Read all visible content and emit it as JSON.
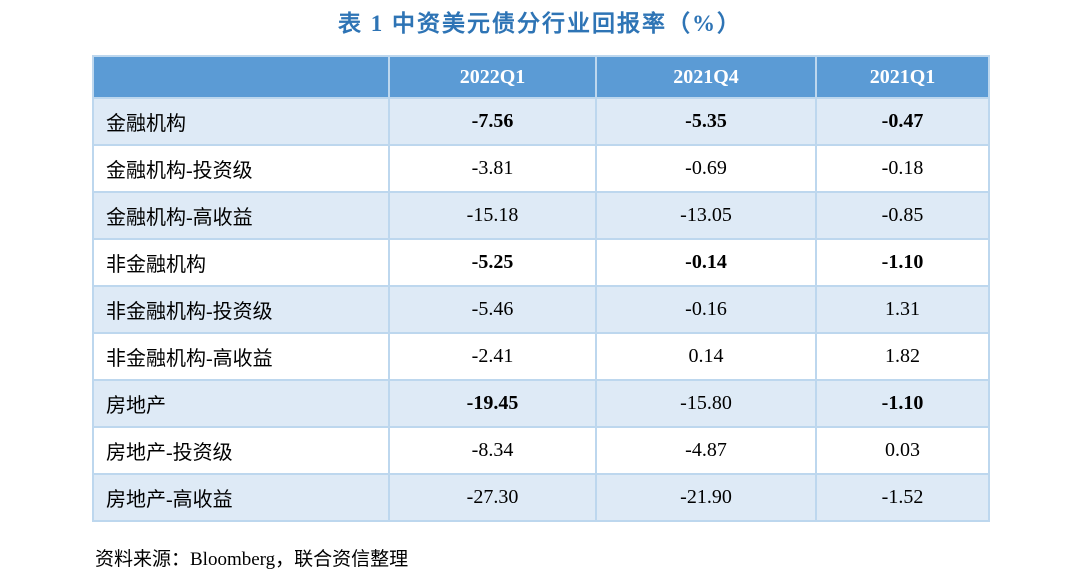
{
  "title": "表 1 中资美元债分行业回报率（%）",
  "colors": {
    "title_blue": "#2E74B5",
    "header_bg": "#5B9BD5",
    "header_text": "#FFFFFF",
    "shaded_row_bg": "#DEEAF6",
    "plain_row_bg": "#FFFFFF",
    "border": "#BDD7EE",
    "body_text": "#000000"
  },
  "table": {
    "columns": [
      "",
      "2022Q1",
      "2021Q4",
      "2021Q1"
    ],
    "rows": [
      {
        "label": "金融机构",
        "values": [
          "-7.56",
          "-5.35",
          "-0.47"
        ],
        "bold": [
          true,
          true,
          true
        ],
        "shaded": true
      },
      {
        "label": "金融机构-投资级",
        "values": [
          "-3.81",
          "-0.69",
          "-0.18"
        ],
        "bold": [
          false,
          false,
          false
        ],
        "shaded": false
      },
      {
        "label": "金融机构-高收益",
        "values": [
          "-15.18",
          "-13.05",
          "-0.85"
        ],
        "bold": [
          false,
          false,
          false
        ],
        "shaded": true
      },
      {
        "label": "非金融机构",
        "values": [
          "-5.25",
          "-0.14",
          "-1.10"
        ],
        "bold": [
          true,
          true,
          true
        ],
        "shaded": false
      },
      {
        "label": "非金融机构-投资级",
        "values": [
          "-5.46",
          "-0.16",
          "1.31"
        ],
        "bold": [
          false,
          false,
          false
        ],
        "shaded": true
      },
      {
        "label": "非金融机构-高收益",
        "values": [
          "-2.41",
          "0.14",
          "1.82"
        ],
        "bold": [
          false,
          false,
          false
        ],
        "shaded": false
      },
      {
        "label": "房地产",
        "values": [
          "-19.45",
          "-15.80",
          "-1.10"
        ],
        "bold": [
          true,
          false,
          true
        ],
        "shaded": true
      },
      {
        "label": "房地产-投资级",
        "values": [
          "-8.34",
          "-4.87",
          "0.03"
        ],
        "bold": [
          false,
          false,
          false
        ],
        "shaded": false
      },
      {
        "label": "房地产-高收益",
        "values": [
          "-27.30",
          "-21.90",
          "-1.52"
        ],
        "bold": [
          false,
          false,
          false
        ],
        "shaded": true
      }
    ]
  },
  "footer": "资料来源：Bloomberg，联合资信整理"
}
